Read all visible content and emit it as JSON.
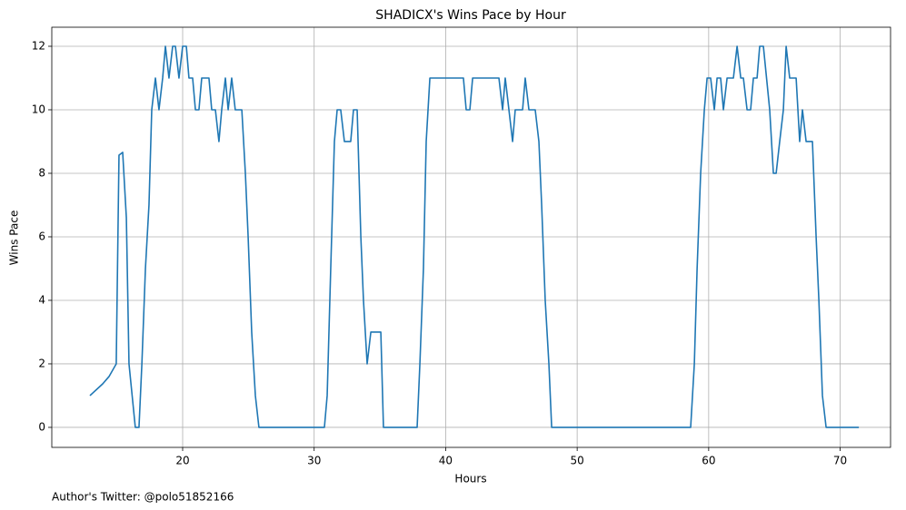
{
  "chart_data": {
    "type": "line",
    "title": "SHADICX's Wins Pace by Hour",
    "xlabel": "Hours",
    "ylabel": "Wins Pace",
    "footnote": "Author's Twitter: @polo51852166",
    "grid": true,
    "xlim": [
      10.05,
      73.83
    ],
    "ylim": [
      -0.63,
      12.6
    ],
    "xticks": [
      20,
      30,
      40,
      50,
      60,
      70
    ],
    "yticks": [
      0,
      2,
      4,
      6,
      8,
      10,
      12
    ],
    "series": [
      {
        "name": "Wins Pace",
        "color": "#1f77b4",
        "x": [
          12.95,
          13.92,
          14.4,
          14.95,
          15.16,
          15.44,
          15.72,
          15.92,
          16.4,
          16.68,
          16.9,
          17.17,
          17.44,
          17.65,
          17.93,
          18.2,
          18.48,
          18.69,
          18.96,
          19.24,
          19.45,
          19.72,
          20,
          20.28,
          20.48,
          20.76,
          20.97,
          21.24,
          21.45,
          22.0,
          22.21,
          22.49,
          22.76,
          22.97,
          23.25,
          23.46,
          23.73,
          24.0,
          24.5,
          24.77,
          24.98,
          25.25,
          25.53,
          25.8,
          30.78,
          30.99,
          31.26,
          31.54,
          31.75,
          32.02,
          32.3,
          32.78,
          32.99,
          33.27,
          33.55,
          33.75,
          34.03,
          34.31,
          35.07,
          35.27,
          37.83,
          38.04,
          38.31,
          38.52,
          38.8,
          41.35,
          41.56,
          41.84,
          42.05,
          44.05,
          44.33,
          44.53,
          44.81,
          45.09,
          45.29,
          45.85,
          46.05,
          46.33,
          46.81,
          47.09,
          47.3,
          47.57,
          47.85,
          48.06,
          58.63,
          58.91,
          59.12,
          59.39,
          59.67,
          59.88,
          60.15,
          60.43,
          60.64,
          60.91,
          61.12,
          61.4,
          61.88,
          62.16,
          62.44,
          62.64,
          62.92,
          63.19,
          63.4,
          63.68,
          63.88,
          64.16,
          64.64,
          64.92,
          65.13,
          65.4,
          65.68,
          65.89,
          66.16,
          66.65,
          66.92,
          67.13,
          67.41,
          67.89,
          68.17,
          68.38,
          68.65,
          68.93,
          71.42
        ],
        "values": [
          1.0,
          1.37,
          1.6,
          2,
          8.57,
          8.66,
          6.6,
          2,
          0,
          0,
          2,
          5,
          7,
          10,
          11,
          10,
          11,
          12,
          11,
          12,
          12,
          11,
          12,
          12,
          11,
          11,
          10,
          10,
          11,
          11,
          10,
          10,
          9,
          10,
          11,
          10,
          11,
          10,
          10,
          8,
          6,
          3,
          1,
          0,
          0,
          1,
          5,
          9,
          10,
          10,
          9,
          9,
          10,
          10,
          6,
          4,
          2,
          3,
          3,
          0,
          0,
          2,
          5,
          9,
          11,
          11,
          10,
          10,
          11,
          11,
          10,
          11,
          10,
          9,
          10,
          10,
          11,
          10,
          10,
          9,
          7,
          4,
          2,
          0,
          0,
          2,
          5,
          8,
          10,
          11,
          11,
          10,
          11,
          11,
          10,
          11,
          11,
          12,
          11,
          11,
          10,
          10,
          11,
          11,
          12,
          12,
          10,
          8,
          8,
          9,
          10,
          12,
          11,
          11,
          9,
          10,
          9,
          9,
          6,
          4,
          1,
          0,
          0
        ]
      }
    ]
  }
}
